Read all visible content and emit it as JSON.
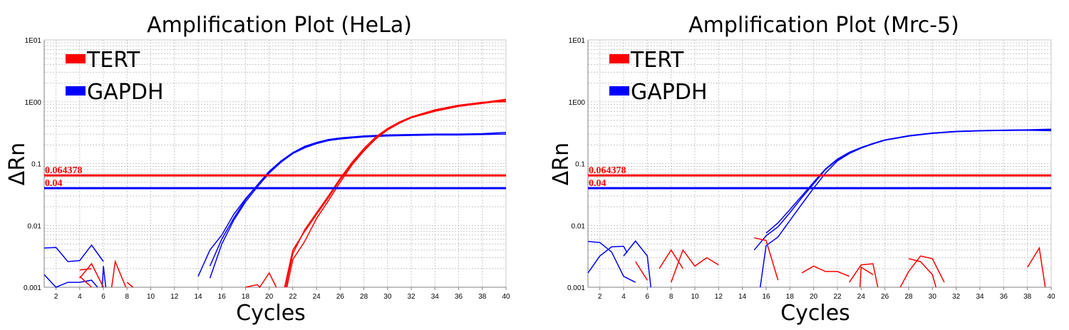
{
  "colors": {
    "TERT": "#ff0000",
    "GAPDH": "#0000ff",
    "grid": "#c8c8c8",
    "axis": "#808080",
    "threshold_label": "#ff0000"
  },
  "chart_data": [
    {
      "type": "line",
      "title": "Amplification Plot (HeLa)",
      "xlabel": "Cycles",
      "ylabel": "ΔRn",
      "xlim": [
        1,
        40
      ],
      "ylim": [
        0.001,
        10
      ],
      "yscale": "log",
      "grid": true,
      "legend_placement": "top-left",
      "x_ticks": [
        "2",
        "4",
        "6",
        "8",
        "10",
        "12",
        "14",
        "16",
        "18",
        "20",
        "22",
        "24",
        "26",
        "28",
        "30",
        "32",
        "34",
        "36",
        "38",
        "40"
      ],
      "y_ticks": [
        "1E01",
        "1E00",
        "0.1",
        "0.01",
        "0.001"
      ],
      "legend": [
        "TERT",
        "GAPDH"
      ],
      "thresholds": [
        {
          "series": "TERT",
          "value": 0.064378,
          "label": "0.064378"
        },
        {
          "series": "GAPDH",
          "value": 0.04,
          "label": "0.04"
        }
      ],
      "series": [
        {
          "name": "GAPDH",
          "x": [
            14,
            15,
            16,
            17,
            18,
            19,
            20,
            21,
            22,
            23,
            24,
            25,
            26,
            28,
            30,
            32,
            34,
            36,
            38,
            40
          ],
          "y": [
            0.0015,
            0.004,
            0.007,
            0.015,
            0.027,
            0.045,
            0.075,
            0.11,
            0.15,
            0.19,
            0.22,
            0.245,
            0.26,
            0.28,
            0.29,
            0.295,
            0.3,
            0.3,
            0.305,
            0.32
          ]
        },
        {
          "name": "GAPDH",
          "x": [
            15,
            16,
            17,
            18,
            19,
            20,
            21,
            22,
            23,
            24,
            25,
            26,
            28,
            30,
            32,
            34,
            36,
            38,
            40
          ],
          "y": [
            0.0014,
            0.005,
            0.012,
            0.024,
            0.042,
            0.07,
            0.105,
            0.145,
            0.18,
            0.21,
            0.235,
            0.25,
            0.27,
            0.28,
            0.285,
            0.29,
            0.29,
            0.295,
            0.3
          ]
        },
        {
          "name": "GAPDH",
          "x": [
            15,
            16,
            17,
            18,
            19,
            20,
            21,
            22,
            23,
            24,
            25,
            26,
            28,
            30,
            32,
            34,
            36,
            38,
            40
          ],
          "y": [
            0.0022,
            0.006,
            0.013,
            0.026,
            0.045,
            0.074,
            0.11,
            0.15,
            0.185,
            0.215,
            0.24,
            0.255,
            0.275,
            0.285,
            0.29,
            0.295,
            0.295,
            0.3,
            0.3
          ]
        },
        {
          "name": "GAPDH",
          "x": [
            1,
            2,
            3,
            4,
            5,
            6
          ],
          "y": [
            0.0043,
            0.0044,
            0.0026,
            0.0027,
            0.0048,
            0.0026
          ]
        },
        {
          "name": "GAPDH",
          "x": [
            1,
            1.6,
            2,
            3,
            4,
            5,
            5.5
          ],
          "y": [
            0.0016,
            0.0012,
            0.001,
            0.0012,
            0.0012,
            0.0013,
            0.001
          ]
        },
        {
          "name": "GAPDH",
          "x": [
            5.9,
            6,
            6.2
          ],
          "y": [
            0.001,
            0.0022,
            0.001
          ]
        },
        {
          "name": "TERT",
          "x": [
            21.3,
            22,
            23,
            24,
            25,
            26,
            27,
            28,
            29,
            30,
            31,
            32,
            34,
            36,
            38,
            40
          ],
          "y": [
            0.001,
            0.004,
            0.008,
            0.015,
            0.028,
            0.055,
            0.1,
            0.17,
            0.26,
            0.36,
            0.46,
            0.56,
            0.72,
            0.86,
            0.97,
            1.1
          ]
        },
        {
          "name": "TERT",
          "x": [
            21.5,
            22,
            23,
            24,
            25,
            26,
            27,
            28,
            29,
            30,
            31,
            32,
            34,
            36,
            38,
            40
          ],
          "y": [
            0.001,
            0.0028,
            0.0055,
            0.013,
            0.025,
            0.05,
            0.095,
            0.16,
            0.25,
            0.35,
            0.45,
            0.55,
            0.7,
            0.84,
            0.94,
            1.05
          ]
        },
        {
          "name": "TERT",
          "x": [
            21.4,
            22,
            23,
            24,
            25,
            26,
            27,
            28,
            29,
            30,
            31,
            32,
            34,
            36,
            38,
            40
          ],
          "y": [
            0.001,
            0.0035,
            0.0085,
            0.016,
            0.03,
            0.058,
            0.105,
            0.175,
            0.27,
            0.37,
            0.47,
            0.57,
            0.74,
            0.88,
            0.98,
            1.0
          ]
        },
        {
          "name": "TERT",
          "x": [
            4,
            5,
            6
          ],
          "y": [
            0.0014,
            0.0024,
            0.001
          ]
        },
        {
          "name": "TERT",
          "x": [
            4,
            5
          ],
          "y": [
            0.0019,
            0.002
          ]
        },
        {
          "name": "TERT",
          "x": [
            4,
            5
          ],
          "y": [
            0.0015,
            0.001
          ]
        },
        {
          "name": "TERT",
          "x": [
            6.7,
            7,
            7.9
          ],
          "y": [
            0.001,
            0.0026,
            0.001
          ]
        },
        {
          "name": "TERT",
          "x": [
            8,
            8.5
          ],
          "y": [
            0.0012,
            0.001
          ]
        },
        {
          "name": "TERT",
          "x": [
            18,
            19,
            19.2,
            20,
            20.6
          ],
          "y": [
            0.001,
            0.0011,
            0.001,
            0.0017,
            0.001
          ]
        }
      ]
    },
    {
      "type": "line",
      "title": "Amplification Plot (Mrc-5)",
      "xlabel": "Cycles",
      "ylabel": "ΔRn",
      "xlim": [
        1,
        40
      ],
      "ylim": [
        0.001,
        10
      ],
      "yscale": "log",
      "grid": true,
      "legend_placement": "top-left",
      "x_ticks": [
        "2",
        "4",
        "6",
        "8",
        "10",
        "12",
        "14",
        "16",
        "18",
        "20",
        "22",
        "24",
        "26",
        "28",
        "30",
        "32",
        "34",
        "36",
        "38",
        "40"
      ],
      "y_ticks": [
        "1E01",
        "1E00",
        "0.1",
        "0.01",
        "0.001"
      ],
      "legend": [
        "TERT",
        "GAPDH"
      ],
      "thresholds": [
        {
          "series": "TERT",
          "value": 0.064378,
          "label": "0.064378"
        },
        {
          "series": "GAPDH",
          "value": 0.04,
          "label": "0.04"
        }
      ],
      "series": [
        {
          "name": "GAPDH",
          "x": [
            15,
            16,
            17,
            18,
            19,
            20,
            21,
            22,
            23,
            24,
            25,
            26,
            28,
            30,
            32,
            34,
            36,
            38,
            40
          ],
          "y": [
            0.004,
            0.0068,
            0.0095,
            0.016,
            0.028,
            0.047,
            0.08,
            0.115,
            0.15,
            0.18,
            0.21,
            0.24,
            0.28,
            0.31,
            0.33,
            0.34,
            0.345,
            0.35,
            0.35
          ]
        },
        {
          "name": "GAPDH",
          "x": [
            16,
            17,
            18,
            19,
            20,
            21,
            22,
            23,
            24,
            25,
            26,
            28,
            30,
            32,
            34,
            36,
            38,
            40
          ],
          "y": [
            0.0075,
            0.011,
            0.018,
            0.03,
            0.05,
            0.082,
            0.118,
            0.152,
            0.182,
            0.212,
            0.242,
            0.282,
            0.312,
            0.332,
            0.342,
            0.347,
            0.352,
            0.36
          ]
        },
        {
          "name": "GAPDH",
          "x": [
            15.5,
            16,
            17,
            18,
            19,
            20,
            21,
            22,
            23,
            24,
            25,
            26,
            28,
            30,
            32,
            34,
            36,
            38,
            40
          ],
          "y": [
            0.001,
            0.0047,
            0.0065,
            0.012,
            0.022,
            0.04,
            0.07,
            0.11,
            0.145,
            0.178,
            0.208,
            0.238,
            0.278,
            0.308,
            0.328,
            0.338,
            0.343,
            0.345,
            0.34
          ]
        },
        {
          "name": "GAPDH",
          "x": [
            1,
            2,
            3,
            4,
            5
          ],
          "y": [
            0.0055,
            0.0053,
            0.0037,
            0.0015,
            0.0012
          ]
        },
        {
          "name": "GAPDH",
          "x": [
            1,
            2,
            3,
            4,
            4.3
          ],
          "y": [
            0.0017,
            0.0032,
            0.0045,
            0.0046,
            0.0036
          ]
        },
        {
          "name": "GAPDH",
          "x": [
            4,
            5,
            6,
            6.3
          ],
          "y": [
            0.0032,
            0.0056,
            0.0032,
            0.001
          ]
        },
        {
          "name": "TERT",
          "x": [
            5,
            6
          ],
          "y": [
            0.0026,
            0.0013
          ]
        },
        {
          "name": "TERT",
          "x": [
            7,
            8,
            9
          ],
          "y": [
            0.002,
            0.004,
            0.002
          ]
        },
        {
          "name": "TERT",
          "x": [
            8,
            9,
            10,
            11,
            12
          ],
          "y": [
            0.0012,
            0.004,
            0.0022,
            0.003,
            0.0023
          ]
        },
        {
          "name": "TERT",
          "x": [
            15,
            16,
            17
          ],
          "y": [
            0.0063,
            0.0057,
            0.0013
          ]
        },
        {
          "name": "TERT",
          "x": [
            19,
            20,
            21,
            22,
            23
          ],
          "y": [
            0.0017,
            0.0022,
            0.0018,
            0.0018,
            0.0015
          ]
        },
        {
          "name": "TERT",
          "x": [
            23,
            24,
            25,
            25.4
          ],
          "y": [
            0.0012,
            0.0023,
            0.0024,
            0.001
          ]
        },
        {
          "name": "TERT",
          "x": [
            23.9,
            24,
            25
          ],
          "y": [
            0.001,
            0.0021,
            0.0016
          ]
        },
        {
          "name": "TERT",
          "x": [
            27.3,
            28,
            29,
            30,
            31
          ],
          "y": [
            0.001,
            0.0018,
            0.0032,
            0.0029,
            0.0012
          ]
        },
        {
          "name": "TERT",
          "x": [
            28,
            29,
            30,
            30.3
          ],
          "y": [
            0.0029,
            0.0026,
            0.0016,
            0.001
          ]
        },
        {
          "name": "TERT",
          "x": [
            38,
            39,
            39.5
          ],
          "y": [
            0.0021,
            0.0043,
            0.001
          ]
        }
      ]
    }
  ]
}
